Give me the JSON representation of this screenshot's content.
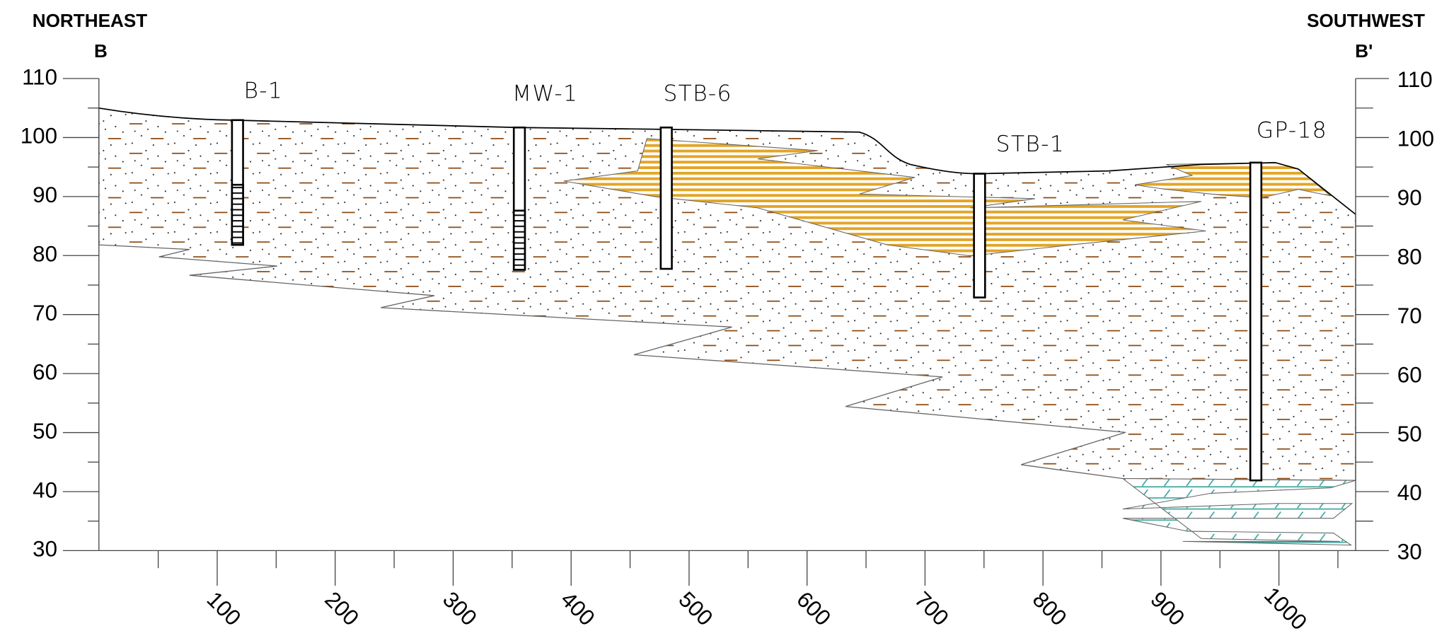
{
  "header": {
    "left_direction": "NORTHEAST",
    "left_label": "B",
    "right_direction": "SOUTHWEST",
    "right_label": "B'"
  },
  "y_axis": {
    "ticks": [
      30,
      40,
      50,
      60,
      70,
      80,
      90,
      100,
      110
    ]
  },
  "x_axis": {
    "ticks": [
      100,
      200,
      300,
      400,
      500,
      600,
      700,
      800,
      900,
      1000
    ]
  },
  "wells": [
    {
      "label": "B-1"
    },
    {
      "label": "MW-1"
    },
    {
      "label": "STB-6"
    },
    {
      "label": "STB-1"
    },
    {
      "label": "GP-18"
    }
  ]
}
